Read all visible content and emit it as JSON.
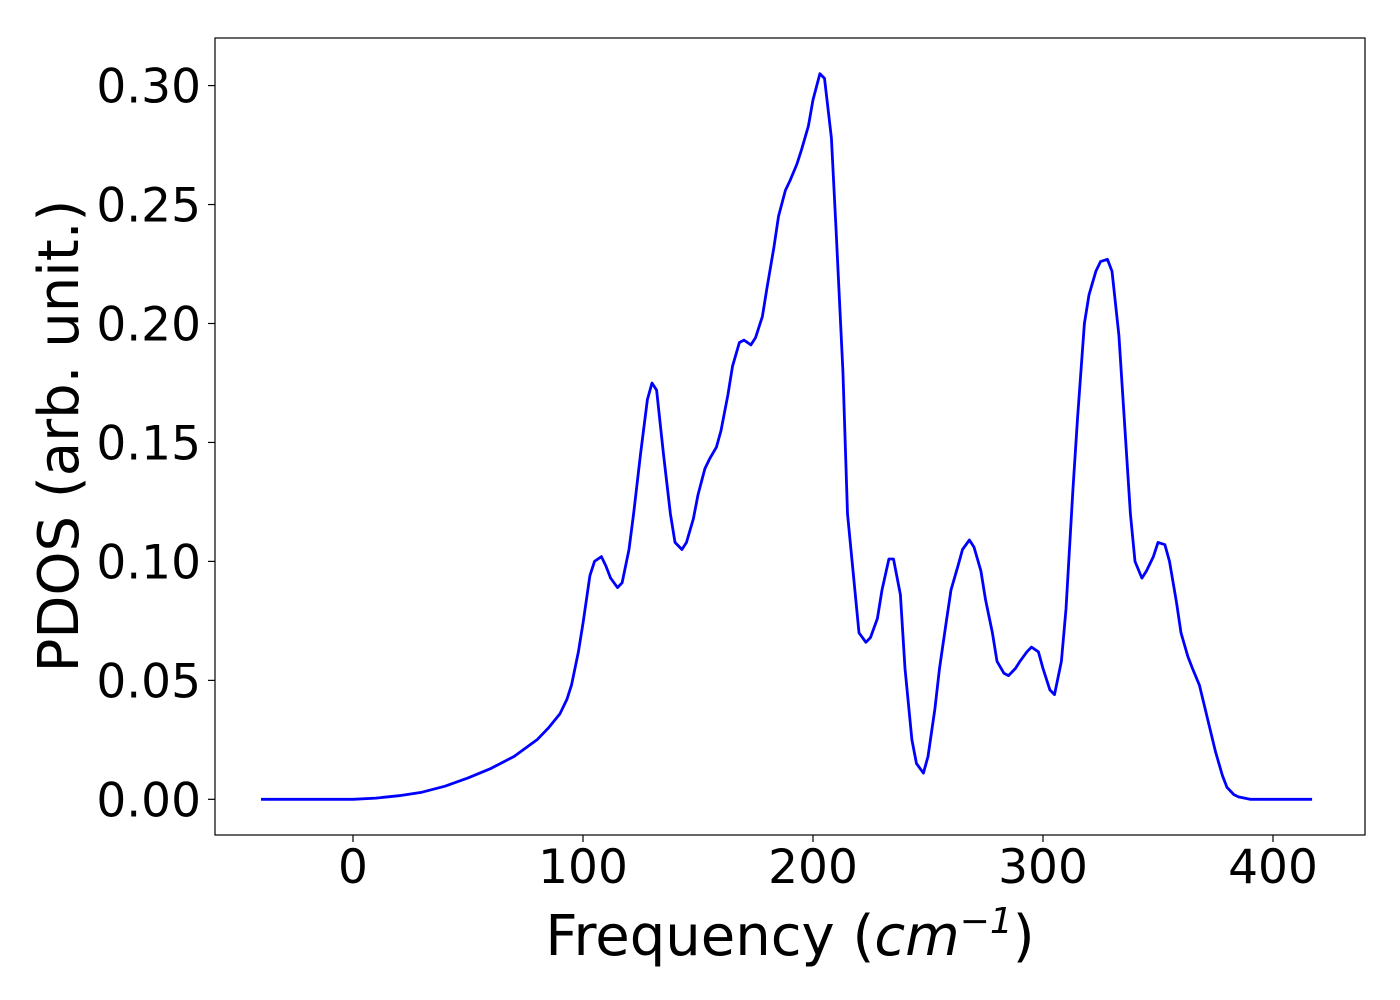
{
  "chart_data": {
    "type": "line",
    "title": "",
    "xlabel_main": "Frequency (",
    "xlabel_unit": "cm",
    "xlabel_exp": "−1",
    "xlabel_close": ")",
    "ylabel": "PDOS (arb. unit.)",
    "xlim": [
      -60,
      440
    ],
    "ylim": [
      -0.015,
      0.32
    ],
    "xticks": [
      0,
      100,
      200,
      300,
      400
    ],
    "xtick_labels": [
      "0",
      "100",
      "200",
      "300",
      "400"
    ],
    "yticks": [
      0.0,
      0.05,
      0.1,
      0.15,
      0.2,
      0.25,
      0.3
    ],
    "ytick_labels": [
      "0.00",
      "0.05",
      "0.10",
      "0.15",
      "0.20",
      "0.25",
      "0.30"
    ],
    "grid": false,
    "series": [
      {
        "color": "#0000ff",
        "x": [
          -40,
          -20,
          0,
          10,
          20,
          30,
          40,
          50,
          60,
          70,
          80,
          85,
          90,
          93,
          95,
          98,
          100,
          103,
          105,
          108,
          110,
          112,
          115,
          117,
          120,
          122,
          125,
          128,
          130,
          132,
          135,
          138,
          140,
          143,
          145,
          148,
          150,
          153,
          155,
          158,
          160,
          163,
          165,
          168,
          170,
          173,
          175,
          178,
          180,
          183,
          185,
          188,
          190,
          193,
          195,
          198,
          200,
          203,
          205,
          208,
          210,
          213,
          215,
          218,
          220,
          223,
          225,
          228,
          230,
          233,
          235,
          238,
          240,
          243,
          245,
          248,
          250,
          253,
          255,
          258,
          260,
          263,
          265,
          268,
          270,
          273,
          275,
          278,
          280,
          283,
          285,
          288,
          290,
          293,
          295,
          298,
          300,
          303,
          305,
          308,
          310,
          313,
          315,
          318,
          320,
          323,
          325,
          328,
          330,
          333,
          335,
          338,
          340,
          343,
          345,
          348,
          350,
          353,
          355,
          358,
          360,
          363,
          365,
          368,
          370,
          373,
          375,
          378,
          380,
          383,
          385,
          390,
          400,
          417
        ],
        "y": [
          0.0,
          0.0,
          0.0,
          0.0005,
          0.0015,
          0.003,
          0.0055,
          0.009,
          0.013,
          0.018,
          0.025,
          0.03,
          0.036,
          0.042,
          0.048,
          0.062,
          0.074,
          0.094,
          0.1,
          0.102,
          0.098,
          0.093,
          0.089,
          0.091,
          0.105,
          0.12,
          0.145,
          0.168,
          0.175,
          0.172,
          0.145,
          0.12,
          0.108,
          0.105,
          0.108,
          0.118,
          0.128,
          0.139,
          0.143,
          0.148,
          0.155,
          0.17,
          0.182,
          0.192,
          0.193,
          0.191,
          0.194,
          0.203,
          0.215,
          0.232,
          0.245,
          0.256,
          0.26,
          0.267,
          0.273,
          0.283,
          0.294,
          0.305,
          0.303,
          0.278,
          0.24,
          0.18,
          0.12,
          0.09,
          0.07,
          0.066,
          0.068,
          0.076,
          0.088,
          0.101,
          0.101,
          0.086,
          0.055,
          0.025,
          0.015,
          0.011,
          0.018,
          0.038,
          0.055,
          0.075,
          0.088,
          0.098,
          0.105,
          0.109,
          0.106,
          0.096,
          0.084,
          0.07,
          0.058,
          0.053,
          0.052,
          0.055,
          0.058,
          0.062,
          0.064,
          0.062,
          0.055,
          0.046,
          0.044,
          0.058,
          0.08,
          0.13,
          0.16,
          0.2,
          0.212,
          0.222,
          0.226,
          0.227,
          0.222,
          0.195,
          0.165,
          0.12,
          0.1,
          0.093,
          0.096,
          0.102,
          0.108,
          0.107,
          0.1,
          0.083,
          0.07,
          0.06,
          0.055,
          0.048,
          0.04,
          0.028,
          0.02,
          0.01,
          0.005,
          0.002,
          0.001,
          0.0,
          0.0,
          0.0
        ]
      }
    ]
  }
}
